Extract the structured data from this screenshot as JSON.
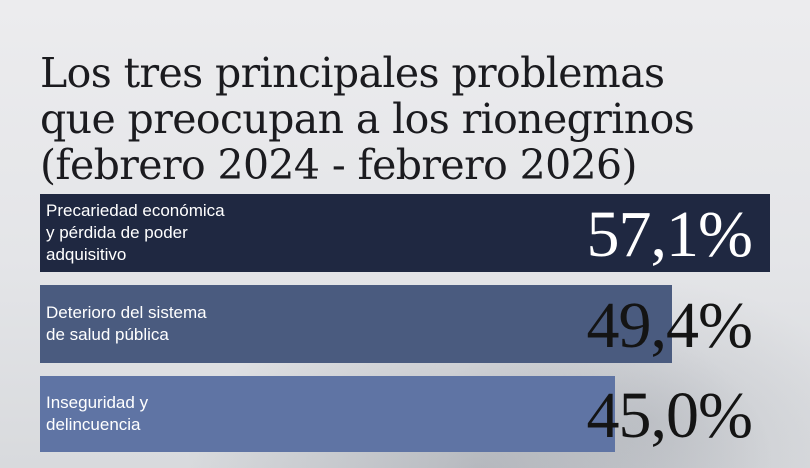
{
  "title_lines": [
    "Los tres principales problemas",
    "que preocupan a los rionegrinos",
    "(febrero 2024 - febrero 2026)"
  ],
  "chart_data": {
    "type": "bar",
    "orientation": "horizontal",
    "title": "Los tres principales problemas que preocupan a los rionegrinos (febrero 2024 - febrero 2026)",
    "categories": [
      [
        "Precariedad económica",
        "y pérdida de poder",
        "adquisitivo"
      ],
      [
        "Deterioro del sistema",
        "de salud pública"
      ],
      [
        "Inseguridad y",
        "delincuencia"
      ]
    ],
    "values": [
      57.1,
      49.4,
      45.0
    ],
    "value_labels": [
      "57,1%",
      "49,4%",
      "45,0%"
    ],
    "unit": "%",
    "xlim": [
      0,
      57.1
    ],
    "grid": false,
    "legend": "none",
    "bar_colors": [
      "#1f2841",
      "#4a5b7f",
      "#5f74a4"
    ],
    "value_colors": [
      "#ffffff",
      "#141414",
      "#141414"
    ]
  }
}
